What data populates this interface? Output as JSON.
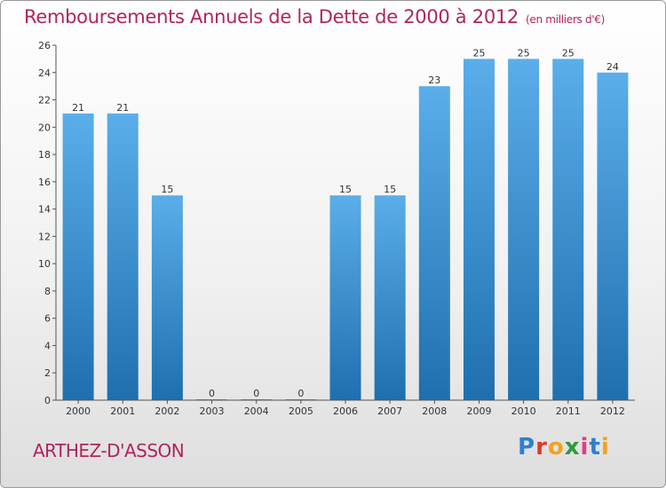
{
  "header": {
    "title": "Remboursements Annuels de la Dette de 2000 à 2012",
    "unit": "(en milliers d'€)"
  },
  "footer": {
    "town": "ARTHEZ-D'ASSON",
    "logo_text": "Proxiti"
  },
  "colors": {
    "accent": "#b0245e",
    "bar_top": "#5aaeea",
    "bar_bottom": "#1f6fae"
  },
  "chart_data": {
    "type": "bar",
    "title": "Remboursements Annuels de la Dette de 2000 à 2012",
    "subtitle": "(en milliers d'€)",
    "xlabel": "",
    "ylabel": "",
    "categories": [
      "2000",
      "2001",
      "2002",
      "2003",
      "2004",
      "2005",
      "2006",
      "2007",
      "2008",
      "2009",
      "2010",
      "2011",
      "2012"
    ],
    "values": [
      21,
      21,
      15,
      0,
      0,
      0,
      15,
      15,
      23,
      25,
      25,
      25,
      24
    ],
    "ylim": [
      0,
      26
    ],
    "yticks": [
      0,
      2,
      4,
      6,
      8,
      10,
      12,
      14,
      16,
      18,
      20,
      22,
      24,
      26
    ],
    "grid": false,
    "data_labels": true
  }
}
